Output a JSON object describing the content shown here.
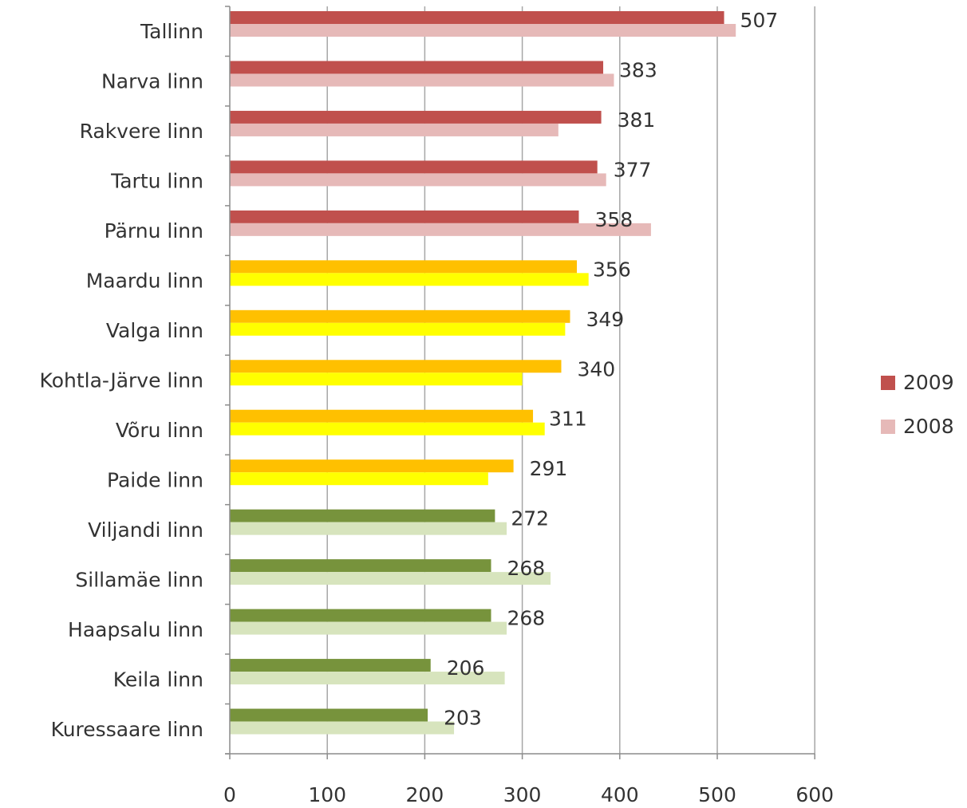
{
  "chart_data": {
    "type": "bar",
    "orientation": "horizontal",
    "categories": [
      "Tallinn",
      "Narva linn",
      "Rakvere linn",
      "Tartu linn",
      "Pärnu linn",
      "Maardu linn",
      "Valga linn",
      "Kohtla-Järve linn",
      "Võru linn",
      "Paide linn",
      "Viljandi linn",
      "Sillamäe linn",
      "Haapsalu linn",
      "Keila linn",
      "Kuressaare linn"
    ],
    "series": [
      {
        "name": "2009",
        "values": [
          507,
          383,
          381,
          377,
          358,
          356,
          349,
          340,
          311,
          291,
          272,
          268,
          268,
          206,
          203
        ]
      },
      {
        "name": "2008",
        "values": [
          519,
          394,
          337,
          386,
          432,
          368,
          344,
          300,
          323,
          265,
          284,
          329,
          284,
          282,
          230
        ]
      }
    ],
    "data_labels_series": "2009",
    "category_groups": [
      {
        "count": 5,
        "color_2009": "#c0504d",
        "color_2008": "#e6b9b8"
      },
      {
        "count": 5,
        "color_2009": "#ffc000",
        "color_2008": "#ffff00"
      },
      {
        "count": 5,
        "color_2009": "#77933c",
        "color_2008": "#d7e4bd"
      }
    ],
    "legend": {
      "placement": "right",
      "entries": [
        {
          "label": "2009",
          "color": "#c0504d"
        },
        {
          "label": "2008",
          "color": "#e6b9b8"
        }
      ]
    },
    "xlim": [
      0,
      600
    ],
    "xticks": [
      0,
      100,
      200,
      300,
      400,
      500,
      600
    ],
    "grid": true,
    "title": "",
    "xlabel": "",
    "ylabel": ""
  }
}
